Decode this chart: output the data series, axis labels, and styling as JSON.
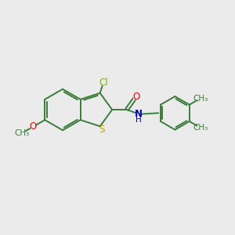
{
  "background_color": "#ebebeb",
  "bond_color": "#3a7d3a",
  "cl_color": "#7db800",
  "o_color": "#ff0000",
  "n_color": "#0000cc",
  "s_color": "#c8a000",
  "figsize": [
    3.0,
    3.0
  ],
  "dpi": 100,
  "xlim": [
    0,
    12
  ],
  "ylim": [
    0,
    10
  ]
}
